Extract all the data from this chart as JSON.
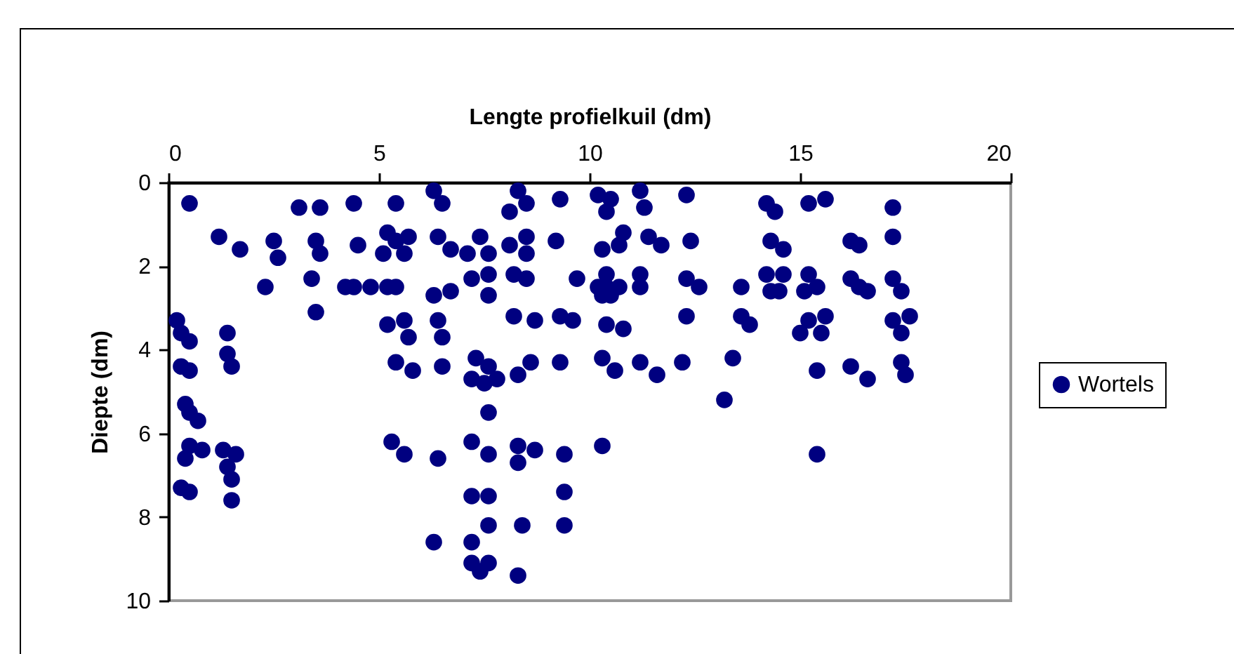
{
  "chart_data": {
    "type": "scatter",
    "xlabel": "Lengte profielkuil (dm)",
    "ylabel": "Diepte (dm)",
    "xlim": [
      0,
      20
    ],
    "xticks": [
      0,
      5,
      10,
      15,
      20
    ],
    "ylim": [
      10,
      0
    ],
    "yticks": [
      0,
      2,
      4,
      6,
      8,
      10
    ],
    "grid": false,
    "legend": "right",
    "marker": "circle",
    "series": [
      {
        "name": "Wortels",
        "color": "#000080",
        "x": [
          0.5,
          1.2,
          1.7,
          2.5,
          2.6,
          2.3,
          3.1,
          3.6,
          3.5,
          3.6,
          3.4,
          3.5,
          4.4,
          4.5,
          4.2,
          4.4,
          4.8,
          5.2,
          5.4,
          5.4,
          6.3,
          6.5,
          5.2,
          5.4,
          5.7,
          5.6,
          5.1,
          6.4,
          6.3,
          0.2,
          0.3,
          0.5,
          0.3,
          0.5,
          1.4,
          1.4,
          1.5,
          0.4,
          0.5,
          0.7,
          0.5,
          0.8,
          0.4,
          1.3,
          1.6,
          1.4,
          1.5,
          1.5,
          0.3,
          0.5,
          5.2,
          5.6,
          5.7,
          5.4,
          5.8,
          6.4,
          6.5,
          6.5,
          5.3,
          5.6,
          6.4,
          6.3,
          8.3,
          8.5,
          8.1,
          9.3,
          10.2,
          10.5,
          10.4,
          6.7,
          7.1,
          7.4,
          7.6,
          8.1,
          8.5,
          8.5,
          9.2,
          10.3,
          10.8,
          10.7,
          7.2,
          7.6,
          7.6,
          6.7,
          8.2,
          8.5,
          9.7,
          10.2,
          10.4,
          10.7,
          10.3,
          10.5,
          10.4,
          8.2,
          8.7,
          9.3,
          9.6,
          10.4,
          10.8,
          7.3,
          7.6,
          7.2,
          7.5,
          7.8,
          8.3,
          8.6,
          9.3,
          10.3,
          10.6,
          7.6,
          7.2,
          7.6,
          8.3,
          8.7,
          8.3,
          9.4,
          10.3,
          7.2,
          7.6,
          9.4,
          7.2,
          7.6,
          8.4,
          9.4,
          7.2,
          7.6,
          7.4,
          8.3,
          11.2,
          11.3,
          12.3,
          14.2,
          14.4,
          15.2,
          15.6,
          11.4,
          11.7,
          12.4,
          14.3,
          14.6,
          11.2,
          11.2,
          12.3,
          12.6,
          13.6,
          14.2,
          14.6,
          14.3,
          14.5,
          15.2,
          15.4,
          15.1,
          12.3,
          13.6,
          13.8,
          15.2,
          15.6,
          15.0,
          15.5,
          11.2,
          11.6,
          12.2,
          13.4,
          15.4,
          13.2,
          15.4,
          17.2,
          16.2,
          16.4,
          17.2,
          16.2,
          16.4,
          16.6,
          17.2,
          17.4,
          17.2,
          17.6,
          17.4,
          16.2,
          16.6,
          17.4,
          17.5
        ],
        "values": [
          0.5,
          1.3,
          1.6,
          1.4,
          1.8,
          2.5,
          0.6,
          0.6,
          1.4,
          1.7,
          2.3,
          3.1,
          0.5,
          1.5,
          2.5,
          2.5,
          2.5,
          2.5,
          2.5,
          0.5,
          0.2,
          0.5,
          1.2,
          1.4,
          1.3,
          1.7,
          1.7,
          1.3,
          2.7,
          3.3,
          3.6,
          3.8,
          4.4,
          4.5,
          3.6,
          4.1,
          4.4,
          5.3,
          5.5,
          5.7,
          6.3,
          6.4,
          6.6,
          6.4,
          6.5,
          6.8,
          7.1,
          7.6,
          7.3,
          7.4,
          3.4,
          3.3,
          3.7,
          4.3,
          4.5,
          3.3,
          3.7,
          4.4,
          6.2,
          6.5,
          6.6,
          8.6,
          0.2,
          0.5,
          0.7,
          0.4,
          0.3,
          0.4,
          0.7,
          1.6,
          1.7,
          1.3,
          1.7,
          1.5,
          1.3,
          1.7,
          1.4,
          1.6,
          1.2,
          1.5,
          2.3,
          2.2,
          2.7,
          2.6,
          2.2,
          2.3,
          2.3,
          2.5,
          2.2,
          2.5,
          2.7,
          2.7,
          2.5,
          3.2,
          3.3,
          3.2,
          3.3,
          3.4,
          3.5,
          4.2,
          4.4,
          4.7,
          4.8,
          4.7,
          4.6,
          4.3,
          4.3,
          4.2,
          4.5,
          5.5,
          6.2,
          6.5,
          6.3,
          6.4,
          6.7,
          6.5,
          6.3,
          7.5,
          7.5,
          7.4,
          8.6,
          8.2,
          8.2,
          8.2,
          9.1,
          9.1,
          9.3,
          9.4,
          0.2,
          0.6,
          0.3,
          0.5,
          0.7,
          0.5,
          0.4,
          1.3,
          1.5,
          1.4,
          1.4,
          1.6,
          2.2,
          2.5,
          2.3,
          2.5,
          2.5,
          2.2,
          2.2,
          2.6,
          2.6,
          2.2,
          2.5,
          2.6,
          3.2,
          3.2,
          3.4,
          3.3,
          3.2,
          3.6,
          3.6,
          4.3,
          4.6,
          4.3,
          4.2,
          4.5,
          5.2,
          6.5,
          0.6,
          1.4,
          1.5,
          1.3,
          2.3,
          2.5,
          2.6,
          2.3,
          2.6,
          3.3,
          3.2,
          3.6,
          4.4,
          4.7,
          4.3,
          4.6
        ]
      }
    ]
  }
}
